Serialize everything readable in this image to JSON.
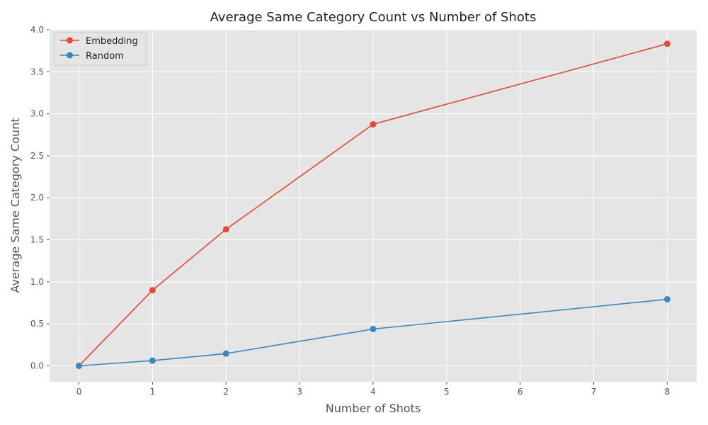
{
  "chart_data": {
    "type": "line",
    "title": "Average Same Category Count vs Number of Shots",
    "xlabel": "Number of Shots",
    "ylabel": "Average Same Category Count",
    "x": [
      0,
      1,
      2,
      4,
      8
    ],
    "xlim": [
      -0.4,
      8.4
    ],
    "ylim": [
      -0.19,
      4.0
    ],
    "xticks": [
      0,
      1,
      2,
      3,
      4,
      5,
      6,
      7,
      8
    ],
    "yticks": [
      0.0,
      0.5,
      1.0,
      1.5,
      2.0,
      2.5,
      3.0,
      3.5,
      4.0
    ],
    "xtick_labels": [
      "0",
      "1",
      "2",
      "3",
      "4",
      "5",
      "6",
      "7",
      "8"
    ],
    "ytick_labels": [
      "0.0",
      "0.5",
      "1.0",
      "1.5",
      "2.0",
      "2.5",
      "3.0",
      "3.5",
      "4.0"
    ],
    "grid": true,
    "legend_position": "top-left",
    "series": [
      {
        "name": "Embedding",
        "color": "#E24A33",
        "values": [
          0.0,
          0.9,
          1.625,
          2.875,
          3.833
        ]
      },
      {
        "name": "Random",
        "color": "#348ABD",
        "values": [
          0.0,
          0.062,
          0.146,
          0.438,
          0.792
        ]
      }
    ],
    "background_color": "#E5E5E5",
    "grid_color": "#FFFFFF"
  }
}
